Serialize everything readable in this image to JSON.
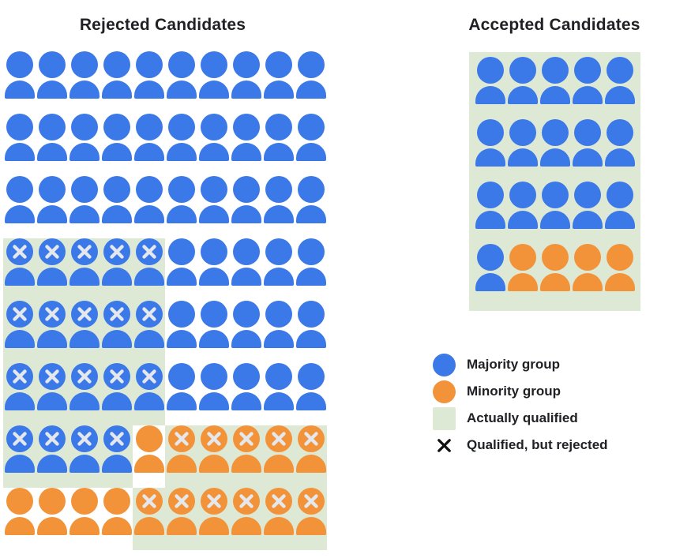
{
  "titles": {
    "rejected": "Rejected Candidates",
    "accepted": "Accepted Candidates"
  },
  "colors": {
    "majority": "#3B78E8",
    "minority": "#F2933A",
    "qualified_bg": "#DDE9D5",
    "x_on_icon": "#E4E8EC",
    "legend_x": "#111111",
    "text": "#202124"
  },
  "legend": {
    "items": [
      {
        "icon": "majority-circle",
        "label": "Majority group"
      },
      {
        "icon": "minority-circle",
        "label": "Minority group"
      },
      {
        "icon": "qualified-square",
        "label": "Actually qualified"
      },
      {
        "icon": "x-mark",
        "label": "Qualified, but rejected"
      }
    ]
  },
  "chart_data": {
    "type": "pictogram",
    "encoding": {
      "b": "majority-group person (blue)",
      "o": "minority-group person (orange)",
      "uppercase_first_letter": "actually qualified (green background)",
      "x_suffix": "qualified but rejected (X mark on head)"
    },
    "panels": [
      {
        "title": "Rejected Candidates",
        "columns": 10,
        "rows": 8,
        "total": 80,
        "majority_total": 64,
        "minority_total": 16,
        "qualified_but_rejected_majority": 19,
        "qualified_but_rejected_minority": 11,
        "grid": [
          [
            "b",
            "b",
            "b",
            "b",
            "b",
            "b",
            "b",
            "b",
            "b",
            "b"
          ],
          [
            "b",
            "b",
            "b",
            "b",
            "b",
            "b",
            "b",
            "b",
            "b",
            "b"
          ],
          [
            "b",
            "b",
            "b",
            "b",
            "b",
            "b",
            "b",
            "b",
            "b",
            "b"
          ],
          [
            "Bx",
            "Bx",
            "Bx",
            "Bx",
            "Bx",
            "b",
            "b",
            "b",
            "b",
            "b"
          ],
          [
            "Bx",
            "Bx",
            "Bx",
            "Bx",
            "Bx",
            "b",
            "b",
            "b",
            "b",
            "b"
          ],
          [
            "Bx",
            "Bx",
            "Bx",
            "Bx",
            "Bx",
            "b",
            "b",
            "b",
            "b",
            "b"
          ],
          [
            "Bx",
            "Bx",
            "Bx",
            "Bx",
            "o",
            "Ox",
            "Ox",
            "Ox",
            "Ox",
            "Ox"
          ],
          [
            "o",
            "o",
            "o",
            "o",
            "Ox",
            "Ox",
            "Ox",
            "Ox",
            "Ox",
            "Ox"
          ]
        ]
      },
      {
        "title": "Accepted Candidates",
        "columns": 5,
        "rows": 4,
        "total": 20,
        "majority_total": 16,
        "minority_total": 4,
        "all_qualified": true,
        "grid": [
          [
            "B",
            "B",
            "B",
            "B",
            "B"
          ],
          [
            "B",
            "B",
            "B",
            "B",
            "B"
          ],
          [
            "B",
            "B",
            "B",
            "B",
            "B"
          ],
          [
            "B",
            "O",
            "O",
            "O",
            "O"
          ]
        ]
      }
    ]
  }
}
